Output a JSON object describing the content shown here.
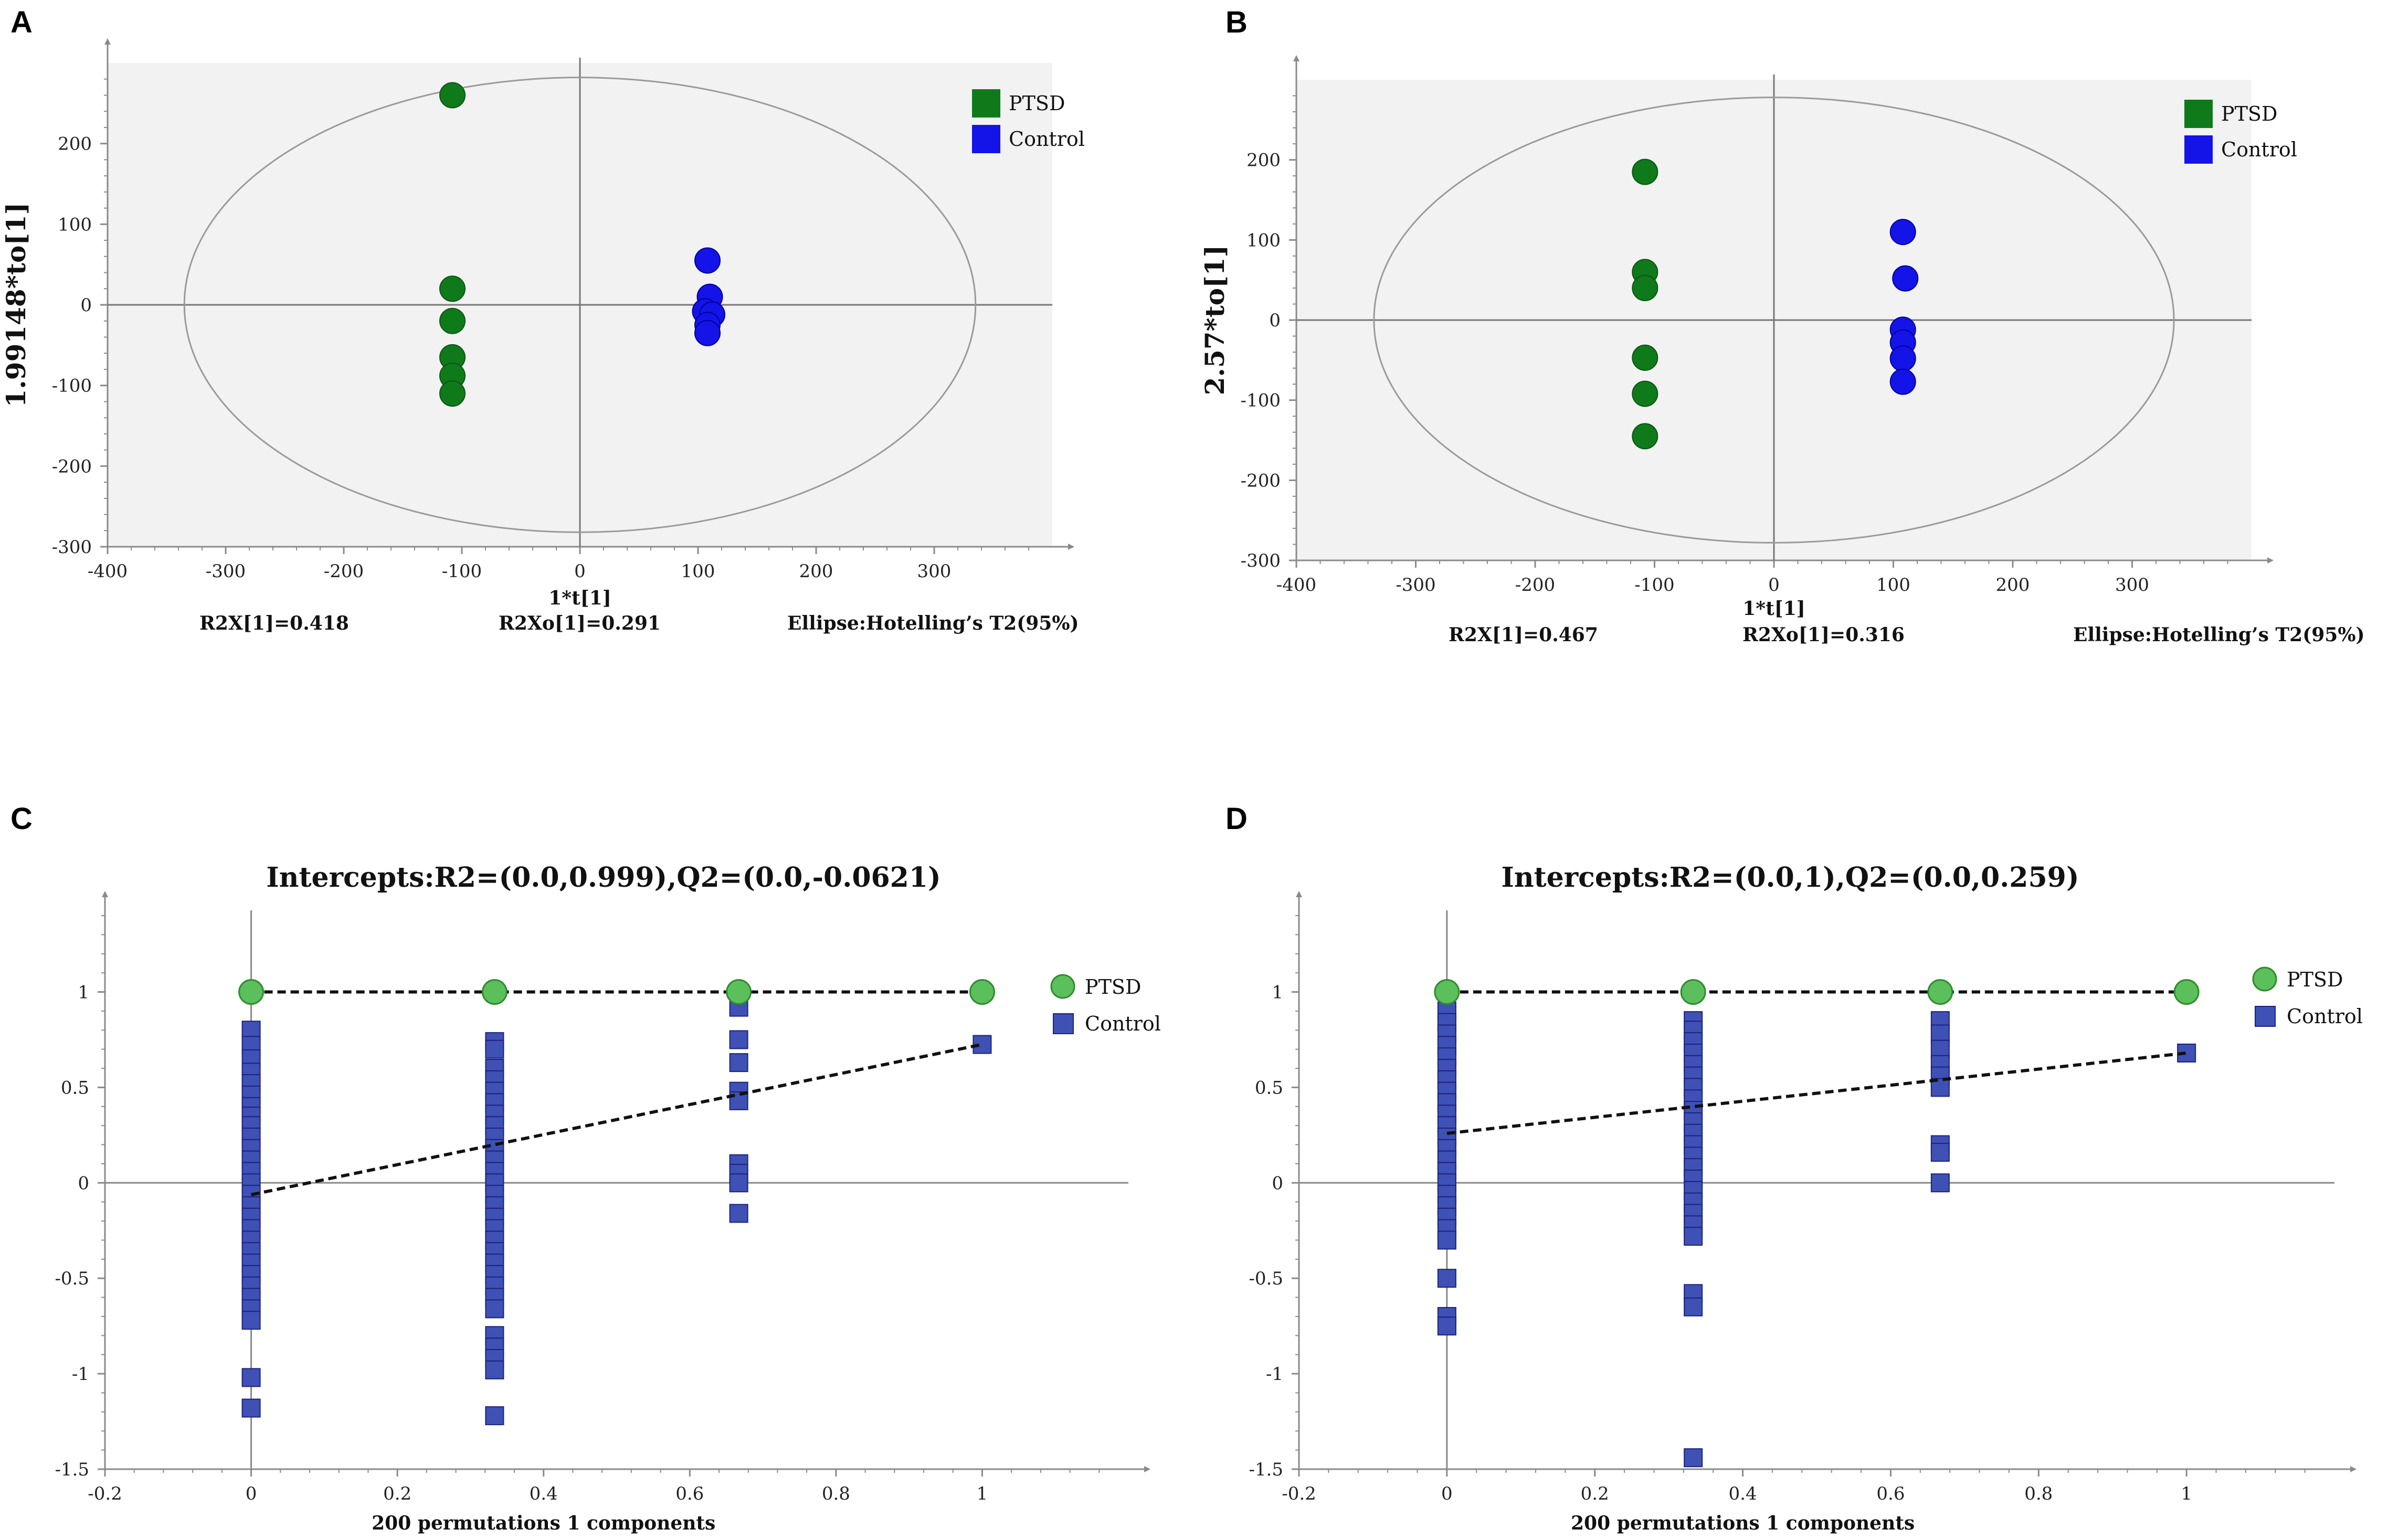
{
  "colors": {
    "ptsd": "#0f7a1a",
    "ptsd_stroke": "#0a5512",
    "control": "#1414e8",
    "control_stroke": "#0000a0",
    "perm_r2": "#5bbf5b",
    "perm_r2_stroke": "#2e8b2e",
    "perm_q2": "#3f51b5",
    "perm_q2_stroke": "#1a237e",
    "plot_bg": "#f2f2f2",
    "axis": "#8a8a8a"
  },
  "chart_data": [
    {
      "id": "A",
      "type": "scatter",
      "panel_label": "A",
      "ylabel": "1.99148*to[1]",
      "xlabel": "1*t[1]",
      "xlim": [
        -400,
        400
      ],
      "ylim": [
        -300,
        300
      ],
      "xticks": [
        -400,
        -300,
        -200,
        -100,
        0,
        100,
        200,
        300
      ],
      "yticks": [
        -300,
        -200,
        -100,
        0,
        100,
        200
      ],
      "stats": [
        "R2X[1]=0.418",
        "R2Xo[1]=0.291",
        "Ellipse:Hotelling’s T2(95%)"
      ],
      "ellipse": {
        "rx": 335,
        "ry": 282
      },
      "legend": [
        "PTSD",
        "Control"
      ],
      "series": [
        {
          "name": "PTSD",
          "points": [
            [
              -108,
              260
            ],
            [
              -108,
              20
            ],
            [
              -108,
              -20
            ],
            [
              -108,
              -65
            ],
            [
              -108,
              -88
            ],
            [
              -108,
              -110
            ]
          ]
        },
        {
          "name": "Control",
          "points": [
            [
              108,
              55
            ],
            [
              110,
              10
            ],
            [
              106,
              -8
            ],
            [
              112,
              -12
            ],
            [
              108,
              -25
            ],
            [
              108,
              -35
            ]
          ]
        }
      ]
    },
    {
      "id": "B",
      "type": "scatter",
      "panel_label": "B",
      "ylabel": "2.57*to[1]",
      "xlabel": "1*t[1]",
      "xlim": [
        -400,
        400
      ],
      "ylim": [
        -300,
        300
      ],
      "xticks": [
        -400,
        -300,
        -200,
        -100,
        0,
        100,
        200,
        300
      ],
      "yticks": [
        -300,
        -200,
        -100,
        0,
        100,
        200
      ],
      "stats": [
        "R2X[1]=0.467",
        "R2Xo[1]=0.316",
        "Ellipse:Hotelling’s T2(95%)"
      ],
      "ellipse": {
        "rx": 335,
        "ry": 278
      },
      "legend": [
        "PTSD",
        "Control"
      ],
      "series": [
        {
          "name": "PTSD",
          "points": [
            [
              -108,
              185
            ],
            [
              -108,
              60
            ],
            [
              -108,
              40
            ],
            [
              -108,
              -47
            ],
            [
              -108,
              -92
            ],
            [
              -108,
              -145
            ]
          ]
        },
        {
          "name": "Control",
          "points": [
            [
              108,
              110
            ],
            [
              110,
              52
            ],
            [
              108,
              -12
            ],
            [
              108,
              -28
            ],
            [
              108,
              -48
            ],
            [
              108,
              -77
            ]
          ]
        }
      ]
    },
    {
      "id": "C",
      "type": "scatter",
      "panel_label": "C",
      "title": "Intercepts:R2=(0.0,0.999),Q2=(0.0,-0.0621)",
      "xlabel": "200 permutations 1 components",
      "xlim": [
        -0.2,
        1.2
      ],
      "ylim": [
        -1.5,
        1.4
      ],
      "xticks": [
        -0.2,
        0,
        0.2,
        0.4,
        0.6,
        0.8,
        1
      ],
      "yticks": [
        -1.5,
        -1,
        -0.5,
        0,
        0.5,
        1
      ],
      "legend": [
        "PTSD",
        "Control"
      ],
      "r2_points": [
        [
          0,
          1
        ],
        [
          0.333,
          1
        ],
        [
          0.667,
          1
        ],
        [
          1,
          1
        ]
      ],
      "r2_line": [
        [
          0,
          1
        ],
        [
          1,
          1
        ]
      ],
      "q2_line": [
        [
          0,
          -0.0621
        ],
        [
          1,
          0.725
        ]
      ],
      "q2_points": [
        [
          0,
          0.8
        ],
        [
          0,
          0.72
        ],
        [
          0,
          0.65
        ],
        [
          0,
          0.58
        ],
        [
          0,
          0.52
        ],
        [
          0,
          0.46
        ],
        [
          0,
          0.4
        ],
        [
          0,
          0.35
        ],
        [
          0,
          0.3
        ],
        [
          0,
          0.24
        ],
        [
          0,
          0.18
        ],
        [
          0,
          0.12
        ],
        [
          0,
          0.06
        ],
        [
          0,
          0.0
        ],
        [
          0,
          -0.06
        ],
        [
          0,
          -0.12
        ],
        [
          0,
          -0.18
        ],
        [
          0,
          -0.24
        ],
        [
          0,
          -0.3
        ],
        [
          0,
          -0.36
        ],
        [
          0,
          -0.42
        ],
        [
          0,
          -0.48
        ],
        [
          0,
          -0.54
        ],
        [
          0,
          -0.6
        ],
        [
          0,
          -0.66
        ],
        [
          0,
          -0.72
        ],
        [
          0,
          -1.02
        ],
        [
          0,
          -1.18
        ],
        [
          0.333,
          0.74
        ],
        [
          0.333,
          0.7
        ],
        [
          0.333,
          0.6
        ],
        [
          0.333,
          0.54
        ],
        [
          0.333,
          0.48
        ],
        [
          0.333,
          0.42
        ],
        [
          0.333,
          0.36
        ],
        [
          0.333,
          0.3
        ],
        [
          0.333,
          0.24
        ],
        [
          0.333,
          0.18
        ],
        [
          0.333,
          0.12
        ],
        [
          0.333,
          0.06
        ],
        [
          0.333,
          0.0
        ],
        [
          0.333,
          -0.06
        ],
        [
          0.333,
          -0.12
        ],
        [
          0.333,
          -0.18
        ],
        [
          0.333,
          -0.24
        ],
        [
          0.333,
          -0.3
        ],
        [
          0.333,
          -0.36
        ],
        [
          0.333,
          -0.42
        ],
        [
          0.333,
          -0.48
        ],
        [
          0.333,
          -0.54
        ],
        [
          0.333,
          -0.6
        ],
        [
          0.333,
          -0.66
        ],
        [
          0.333,
          -0.8
        ],
        [
          0.333,
          -0.86
        ],
        [
          0.333,
          -0.92
        ],
        [
          0.333,
          -0.98
        ],
        [
          0.333,
          -1.22
        ],
        [
          0.667,
          0.92
        ],
        [
          0.667,
          0.75
        ],
        [
          0.667,
          0.63
        ],
        [
          0.667,
          0.48
        ],
        [
          0.667,
          0.43
        ],
        [
          0.667,
          0.1
        ],
        [
          0.667,
          0.05
        ],
        [
          0.667,
          0.0
        ],
        [
          0.667,
          -0.16
        ],
        [
          1,
          0.725
        ]
      ]
    },
    {
      "id": "D",
      "type": "scatter",
      "panel_label": "D",
      "title": "Intercepts:R2=(0.0,1),Q2=(0.0,0.259)",
      "xlabel": "200 permutations 1 components",
      "xlim": [
        -0.2,
        1.2
      ],
      "ylim": [
        -1.5,
        1.4
      ],
      "xticks": [
        -0.2,
        0,
        0.2,
        0.4,
        0.6,
        0.8,
        1
      ],
      "yticks": [
        -1.5,
        -1,
        -0.5,
        0,
        0.5,
        1
      ],
      "legend": [
        "PTSD",
        "Control"
      ],
      "r2_points": [
        [
          0,
          1
        ],
        [
          0.333,
          1
        ],
        [
          0.667,
          1
        ],
        [
          1,
          1
        ]
      ],
      "r2_line": [
        [
          0,
          1
        ],
        [
          1,
          1
        ]
      ],
      "q2_line": [
        [
          0,
          0.259
        ],
        [
          1,
          0.68
        ]
      ],
      "q2_points": [
        [
          0,
          0.9
        ],
        [
          0,
          0.84
        ],
        [
          0,
          0.78
        ],
        [
          0,
          0.72
        ],
        [
          0,
          0.66
        ],
        [
          0,
          0.6
        ],
        [
          0,
          0.54
        ],
        [
          0,
          0.48
        ],
        [
          0,
          0.42
        ],
        [
          0,
          0.36
        ],
        [
          0,
          0.3
        ],
        [
          0,
          0.24
        ],
        [
          0,
          0.18
        ],
        [
          0,
          0.12
        ],
        [
          0,
          0.06
        ],
        [
          0,
          0.0
        ],
        [
          0,
          -0.06
        ],
        [
          0,
          -0.12
        ],
        [
          0,
          -0.18
        ],
        [
          0,
          -0.24
        ],
        [
          0,
          -0.3
        ],
        [
          0,
          -0.5
        ],
        [
          0,
          -0.7
        ],
        [
          0,
          -0.75
        ],
        [
          0.333,
          0.85
        ],
        [
          0.333,
          0.8
        ],
        [
          0.333,
          0.74
        ],
        [
          0.333,
          0.68
        ],
        [
          0.333,
          0.62
        ],
        [
          0.333,
          0.56
        ],
        [
          0.333,
          0.5
        ],
        [
          0.333,
          0.44
        ],
        [
          0.333,
          0.38
        ],
        [
          0.333,
          0.32
        ],
        [
          0.333,
          0.26
        ],
        [
          0.333,
          0.2
        ],
        [
          0.333,
          0.14
        ],
        [
          0.333,
          0.08
        ],
        [
          0.333,
          0.02
        ],
        [
          0.333,
          -0.04
        ],
        [
          0.333,
          -0.1
        ],
        [
          0.333,
          -0.16
        ],
        [
          0.333,
          -0.22
        ],
        [
          0.333,
          -0.28
        ],
        [
          0.333,
          -0.58
        ],
        [
          0.333,
          -0.65
        ],
        [
          0.333,
          -1.44
        ],
        [
          0.667,
          0.85
        ],
        [
          0.667,
          0.78
        ],
        [
          0.667,
          0.7
        ],
        [
          0.667,
          0.62
        ],
        [
          0.667,
          0.56
        ],
        [
          0.667,
          0.5
        ],
        [
          0.667,
          0.2
        ],
        [
          0.667,
          0.16
        ],
        [
          0.667,
          0.0
        ],
        [
          1,
          0.68
        ]
      ]
    }
  ]
}
